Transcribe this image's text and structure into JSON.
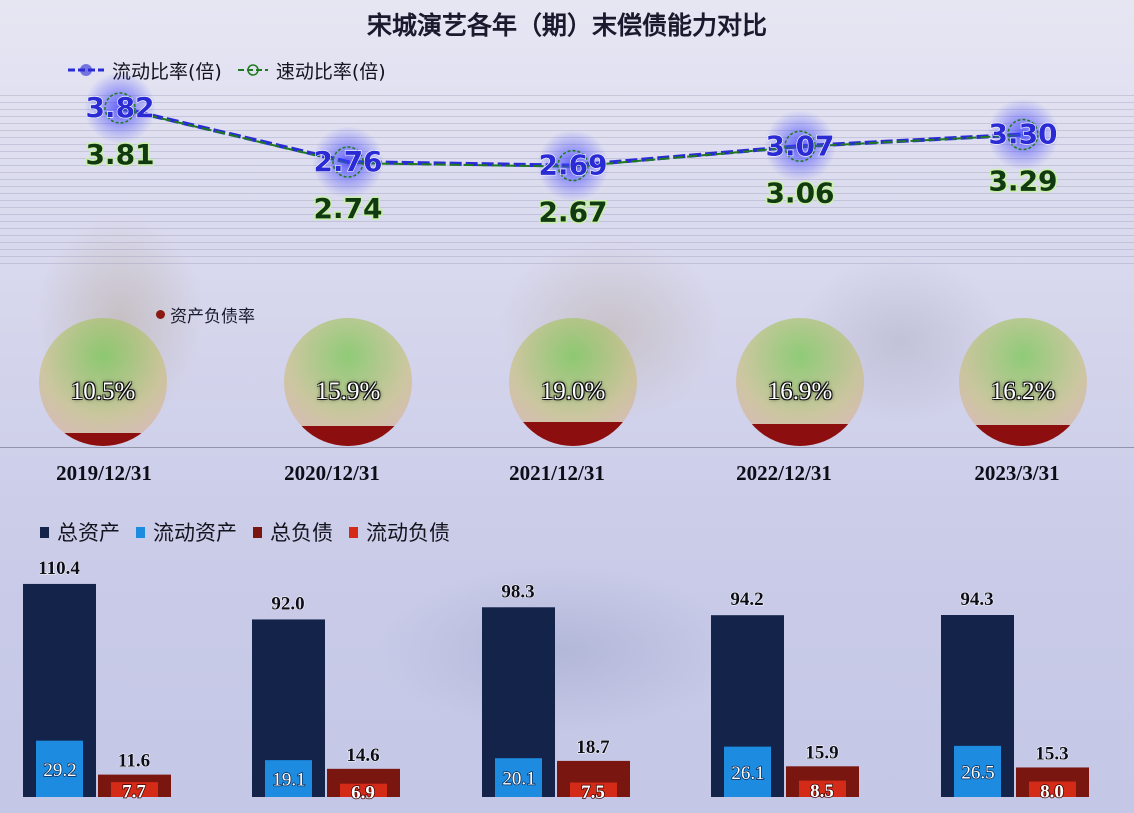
{
  "title": "宋城演艺各年（期）末偿债能力对比",
  "colors": {
    "current_ratio": "#2b2bd6",
    "quick_ratio": "#1f7a1f",
    "total_assets": "#13234a",
    "current_assets": "#1c8be0",
    "total_liabilities": "#7a1610",
    "current_liabilities": "#d42a18",
    "debt_ratio": "#8c0e0e"
  },
  "ratio_legend": {
    "label": "资产负债率"
  },
  "chart_data": [
    {
      "type": "line",
      "title": "宋城演艺各年（期）末偿债能力对比",
      "categories": [
        "2019/12/31",
        "2020/12/31",
        "2021/12/31",
        "2022/12/31",
        "2023/3/31"
      ],
      "series": [
        {
          "name": "流动比率(倍)",
          "values": [
            3.82,
            2.76,
            2.69,
            3.07,
            3.3
          ],
          "labels": [
            "3.82",
            "2.76",
            "2.69",
            "3.07",
            "3.30"
          ]
        },
        {
          "name": "速动比率(倍)",
          "values": [
            3.81,
            2.74,
            2.67,
            3.06,
            3.29
          ],
          "labels": [
            "3.81",
            "2.74",
            "2.67",
            "3.06",
            "3.29"
          ]
        }
      ],
      "legend": "top-left"
    },
    {
      "type": "pie",
      "name": "资产负债率",
      "categories": [
        "2019/12/31",
        "2020/12/31",
        "2021/12/31",
        "2022/12/31",
        "2023/3/31"
      ],
      "values": [
        10.5,
        15.9,
        19.0,
        16.9,
        16.2
      ],
      "labels": [
        "10.5%",
        "15.9%",
        "19.0%",
        "16.9%",
        "16.2%"
      ]
    },
    {
      "type": "bar",
      "categories": [
        "2019/12/31",
        "2020/12/31",
        "2021/12/31",
        "2022/12/31",
        "2023/3/31"
      ],
      "series": [
        {
          "name": "总资产",
          "values": [
            110.4,
            92.0,
            98.3,
            94.2,
            94.3
          ],
          "labels": [
            "110.4",
            "92.0",
            "98.3",
            "94.2",
            "94.3"
          ]
        },
        {
          "name": "流动资产",
          "values": [
            29.2,
            19.1,
            20.1,
            26.1,
            26.5
          ],
          "labels": [
            "29.2",
            "19.1",
            "20.1",
            "26.1",
            "26.5"
          ]
        },
        {
          "name": "总负债",
          "values": [
            11.6,
            14.6,
            18.7,
            15.9,
            15.3
          ],
          "labels": [
            "11.6",
            "14.6",
            "18.7",
            "15.9",
            "15.3"
          ]
        },
        {
          "name": "流动负债",
          "values": [
            7.7,
            6.9,
            7.5,
            8.5,
            8.0
          ],
          "labels": [
            "7.7",
            "6.9",
            "7.5",
            "8.5",
            "8.0"
          ]
        }
      ],
      "legend": "top-left"
    }
  ]
}
